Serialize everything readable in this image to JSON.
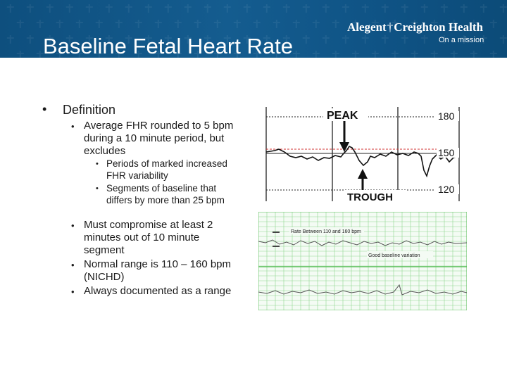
{
  "slide": {
    "title": "Baseline Fetal Heart Rate",
    "logo_part1": "Alegent",
    "logo_cross": "†",
    "logo_part2": "Creighton Health",
    "tagline": "On a mission"
  },
  "bullets": {
    "definition": "Definition",
    "average": "Average FHR rounded to 5 bpm during a 10 minute period, but excludes",
    "sub1": "Periods of marked increased FHR variability",
    "sub2": "Segments of baseline that differs by more than 25 bpm",
    "compromise": "Must compromise at least 2 minutes out of 10 minute segment",
    "normal_range": "Normal range is 110 – 160 bpm (NICHD)",
    "documented": "Always documented as a range"
  },
  "tracing1": {
    "peak_label": "PEAK",
    "trough_label": "TROUGH",
    "scale_180": "180",
    "scale_150": "150",
    "scale_120": "120"
  },
  "tracing2": {
    "rate_label": "Rate Between 110 and 160 bpm",
    "variation_label": "Good baseline variation"
  },
  "colors": {
    "header_blue": "#145c8f",
    "text": "#1a1a1a",
    "grid_green": "#7ed07e",
    "dashed_red": "#d23030"
  }
}
